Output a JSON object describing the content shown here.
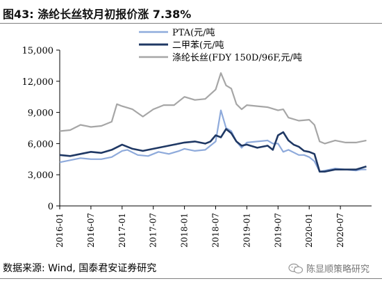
{
  "header": {
    "title": "图43: 涤纶长丝较月初报价涨 7.38%"
  },
  "source": "数据来源: Wind, 国泰君安证券研究",
  "watermark": {
    "text": "陈显顺策略研究",
    "icon": "wechat-icon"
  },
  "chart_data": {
    "type": "line",
    "title": "",
    "xlabel": "",
    "ylabel": "",
    "ylim": [
      0,
      15000
    ],
    "y_ticks": [
      "0",
      "3,000",
      "6,000",
      "9,000",
      "12,000",
      "15,000"
    ],
    "x_ticks": [
      "2016-01",
      "2016-07",
      "2017-01",
      "2017-07",
      "2018-01",
      "2018-07",
      "2019-01",
      "2019-07",
      "2020-01",
      "2020-07"
    ],
    "xlim": [
      "2016-01",
      "2021-01"
    ],
    "grid": false,
    "legend": "top-center",
    "series": [
      {
        "name": "PTA(元/吨",
        "color": "#8eaadb",
        "x": [
          "2016-01",
          "2016-03",
          "2016-05",
          "2016-07",
          "2016-09",
          "2016-11",
          "2017-01",
          "2017-02",
          "2017-04",
          "2017-06",
          "2017-08",
          "2017-10",
          "2017-12",
          "2018-01",
          "2018-03",
          "2018-05",
          "2018-07",
          "2018-08",
          "2018-09",
          "2018-10",
          "2018-11",
          "2018-12",
          "2019-01",
          "2019-03",
          "2019-05",
          "2019-06",
          "2019-07",
          "2019-08",
          "2019-09",
          "2019-11",
          "2019-12",
          "2020-01",
          "2020-02",
          "2020-03",
          "2020-04",
          "2020-06",
          "2020-08",
          "2020-10",
          "2020-11",
          "2020-12"
        ],
        "values": [
          4200,
          4400,
          4600,
          4500,
          4500,
          4700,
          5300,
          5400,
          4900,
          4800,
          5200,
          5000,
          5300,
          5500,
          5300,
          5400,
          6200,
          9200,
          7500,
          7200,
          6200,
          5600,
          6100,
          6200,
          6300,
          6000,
          6000,
          5200,
          5400,
          4900,
          4900,
          4700,
          4300,
          3300,
          3400,
          3600,
          3500,
          3400,
          3500,
          3500
        ]
      },
      {
        "name": "二甲苯(元/吨",
        "color": "#1f3864",
        "x": [
          "2016-01",
          "2016-03",
          "2016-05",
          "2016-07",
          "2016-09",
          "2016-11",
          "2017-01",
          "2017-03",
          "2017-05",
          "2017-07",
          "2017-09",
          "2017-11",
          "2018-01",
          "2018-03",
          "2018-05",
          "2018-06",
          "2018-07",
          "2018-08",
          "2018-09",
          "2018-10",
          "2018-11",
          "2018-12",
          "2019-01",
          "2019-03",
          "2019-05",
          "2019-06",
          "2019-07",
          "2019-08",
          "2019-09",
          "2019-10",
          "2019-11",
          "2019-12",
          "2020-01",
          "2020-02",
          "2020-03",
          "2020-04",
          "2020-06",
          "2020-08",
          "2020-10",
          "2020-12"
        ],
        "values": [
          4900,
          4800,
          5000,
          5200,
          5100,
          5400,
          5900,
          5500,
          5300,
          5500,
          5700,
          5900,
          6100,
          6200,
          6000,
          6200,
          6800,
          6600,
          7400,
          7000,
          6200,
          5800,
          5900,
          5600,
          5800,
          5400,
          6800,
          7100,
          6300,
          5900,
          5700,
          5300,
          5200,
          5000,
          3300,
          3300,
          3500,
          3500,
          3500,
          3800
        ]
      },
      {
        "name": "涤纶长丝(FDY 150D/96F,元/吨",
        "color": "#a6a6a6",
        "x": [
          "2016-01",
          "2016-03",
          "2016-05",
          "2016-07",
          "2016-09",
          "2016-11",
          "2016-12",
          "2017-01",
          "2017-03",
          "2017-05",
          "2017-07",
          "2017-09",
          "2017-11",
          "2018-01",
          "2018-03",
          "2018-05",
          "2018-07",
          "2018-08",
          "2018-09",
          "2018-10",
          "2018-11",
          "2018-12",
          "2019-01",
          "2019-03",
          "2019-05",
          "2019-07",
          "2019-08",
          "2019-09",
          "2019-11",
          "2020-01",
          "2020-02",
          "2020-03",
          "2020-04",
          "2020-06",
          "2020-08",
          "2020-10",
          "2020-12"
        ],
        "values": [
          7200,
          7300,
          7800,
          7600,
          7700,
          8100,
          9800,
          9600,
          9300,
          8600,
          9300,
          9700,
          9700,
          10500,
          10200,
          10300,
          11200,
          12800,
          11600,
          11300,
          9800,
          9300,
          9700,
          9600,
          9500,
          9200,
          9300,
          8500,
          8200,
          8300,
          7800,
          6200,
          6000,
          6300,
          6100,
          6100,
          6300
        ]
      }
    ]
  }
}
